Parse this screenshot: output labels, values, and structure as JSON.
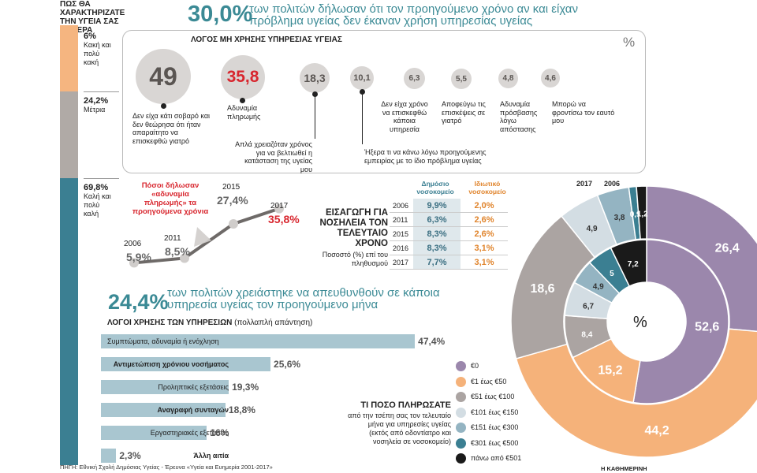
{
  "health": {
    "title": "ΠΩΣ ΘΑ ΧΑΡΑΚΤΗΡΙΖΑΤΕ ΤΗΝ ΥΓΕΙΑ ΣΑΣ ΣΗΜΕΡΑ",
    "items": [
      {
        "pct": "6%",
        "label": "Κακή και πολύ κακή",
        "value": 6
      },
      {
        "pct": "24,2%",
        "label": "Μέτρια",
        "value": 24.2
      },
      {
        "pct": "69,8%",
        "label": "Καλή και πολύ καλή",
        "value": 69.8
      }
    ]
  },
  "headline1": {
    "pct": "30,0%",
    "text": "των πολιτών δήλωσαν ότι τον προηγούμενο χρόνο αν και είχαν πρόβλημα υγείας δεν έκαναν χρήση υπηρεσίας υγείας"
  },
  "reasons": {
    "title": "ΛΟΓΟΣ ΜΗ ΧΡΗΣΗΣ ΥΠΗΡΕΣΙΑΣ ΥΓΕΙΑΣ",
    "unit": "%",
    "items": [
      {
        "value": "49",
        "label": "Δεν είχα κάτι σοβαρό και δεν θεώρησα ότι ήταν απαραίτητο να επισκεφθώ γιατρό"
      },
      {
        "value": "35,8",
        "label": "Αδυναμία πληρωμής"
      },
      {
        "value": "18,3",
        "label": "Απλά χρειαζόταν χρόνος για να βελτιωθεί η κατάσταση της υγείας μου"
      },
      {
        "value": "10,1",
        "label": "Ήξερα τι να κάνω λόγω προηγούμενης εμπειρίας με το ίδιο πρόβλημα υγείας"
      },
      {
        "value": "6,3",
        "label": "Δεν είχα χρόνο να επισκεφθώ κάποια υπηρεσία"
      },
      {
        "value": "5,5",
        "label": "Αποφεύγω τις επισκέψεις σε γιατρό"
      },
      {
        "value": "4,8",
        "label": "Αδυναμία πρόσβασης λόγω απόστασης"
      },
      {
        "value": "4,6",
        "label": "Μπορώ να φροντίσω τον εαυτό μου"
      }
    ]
  },
  "linechart": {
    "note": "Πόσοι δήλωσαν «αδυναμία πληρωμής» τα προηγούμενα χρόνια",
    "years": [
      "2006",
      "2011",
      "2015",
      "2017"
    ],
    "labels": [
      "5,9%",
      "8,5%",
      "27,4%",
      "35,8%"
    ]
  },
  "admission": {
    "title": "ΕΙΣΑΓΩΓΗ ΓΙΑ ΝΟΣΗΛΕΙΑ ΤΟΝ ΤΕΛΕΥΤΑΙΟ ΧΡΟΝΟ",
    "subtitle": "Ποσοστό (%) επί του πληθυσμού",
    "col_public": "Δημόσιο νοσοκομείο",
    "col_private": "Ιδιωτικό νοσοκομείο",
    "rows": [
      {
        "year": "2006",
        "public": "9,9%",
        "private": "2,0%"
      },
      {
        "year": "2011",
        "public": "6,3%",
        "private": "2,6%"
      },
      {
        "year": "2015",
        "public": "8,3%",
        "private": "2,6%"
      },
      {
        "year": "2016",
        "public": "8,3%",
        "private": "3,1%"
      },
      {
        "year": "2017",
        "public": "7,7%",
        "private": "3,1%"
      }
    ]
  },
  "headline2": {
    "pct": "24,4%",
    "text": "των πολιτών χρειάστηκε να απευθυνθούν σε κάποια υπηρεσία υγείας τον προηγούμενο μήνα"
  },
  "services": {
    "title": "ΛΟΓΟΙ ΧΡΗΣΗΣ ΤΩΝ ΥΠΗΡΕΣΙΩΝ",
    "title_note": "(πολλαπλή απάντηση)"
  },
  "payment": {
    "title": "ΤΙ ΠΟΣΟ ΠΛΗΡΩΣΑΤΕ",
    "subtitle": "από την τσέπη σας τον τελευταίο μήνα για υπηρεσίες υγείας (εκτός από οδοντίατρο και νοσηλεία σε νοσοκομείο)",
    "year_outer": "2017",
    "year_inner": "2006",
    "unit": "%",
    "legend": [
      {
        "label": "€0",
        "color": "#9b87ac"
      },
      {
        "label": "€1 έως €50",
        "color": "#f5b27a"
      },
      {
        "label": "€51 έως €100",
        "color": "#aba4a2"
      },
      {
        "label": "€101 έως €150",
        "color": "#d3dde3"
      },
      {
        "label": "€151 έως €300",
        "color": "#94b4c2"
      },
      {
        "label": "€301 έως €500",
        "color": "#3b7f92"
      },
      {
        "label": "πάνω από €501",
        "color": "#1a1a1a"
      }
    ]
  },
  "chart_data": [
    {
      "type": "line",
      "title": "Πόσοι δήλωσαν «αδυναμία πληρωμής» τα προηγούμενα χρόνια",
      "x": [
        "2006",
        "2011",
        "2015",
        "2017"
      ],
      "values": [
        5.9,
        8.5,
        27.4,
        35.8
      ]
    },
    {
      "type": "bar",
      "title": "ΛΟΓΟΙ ΧΡΗΣΗΣ ΤΩΝ ΥΠΗΡΕΣΙΩΝ (πολλαπλή απάντηση)",
      "categories": [
        "Συμπτώματα, αδυναμία ή ενόχληση",
        "Αντιμετώπιση χρόνιου νοσήματος",
        "Προληπτικές εξετάσεις",
        "Αναγραφή συνταγών",
        "Εργαστηριακές εξετάσεις",
        "Άλλη αιτία"
      ],
      "values": [
        47.4,
        25.6,
        19.3,
        18.8,
        16,
        2.3
      ],
      "value_labels": [
        "47,4%",
        "25,6%",
        "19,3%",
        "18,8%",
        "16%",
        "2,3%"
      ]
    },
    {
      "type": "pie",
      "title": "ΤΙ ΠΟΣΟ ΠΛΗΡΩΣΑΤΕ",
      "series": [
        {
          "name": "2006",
          "categories": [
            "€0",
            "€1 έως €50",
            "€51 έως €100",
            "€101 έως €150",
            "€151 έως €300",
            "€301 έως €500",
            "πάνω από €501"
          ],
          "values": [
            52.6,
            15.2,
            8.4,
            6.7,
            4.9,
            5,
            7.2
          ]
        },
        {
          "name": "2017",
          "categories": [
            "€0",
            "€1 έως €50",
            "€51 έως €100",
            "€101 έως €150",
            "€151 έως €300",
            "€301 έως €500",
            "πάνω από €501"
          ],
          "values": [
            26.4,
            44.2,
            18.6,
            4.9,
            3.8,
            0.9,
            1.2
          ]
        }
      ]
    }
  ],
  "footer": {
    "source": "ΠΗΓΗ: Εθνική Σχολή Δημόσιας Υγείας - Έρευνα «Υγεία και Ευημερία 2001-2017»",
    "brand": "Η ΚΑΘΗΜΕΡΙΝΗ"
  }
}
